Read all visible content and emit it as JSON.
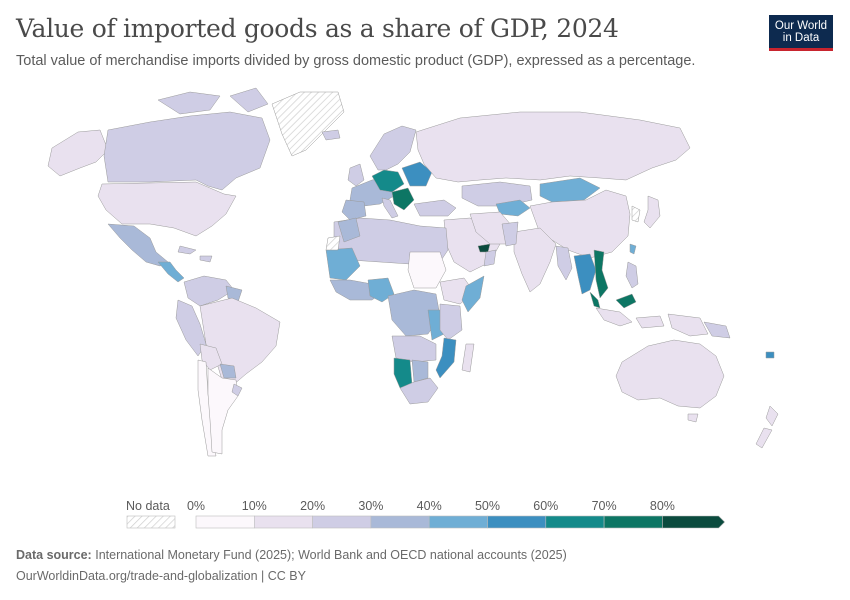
{
  "title": "Value of imported goods as a share of GDP, 2024",
  "subtitle": "Total value of merchandise imports divided by gross domestic product (GDP), expressed as a percentage.",
  "logo": {
    "line1": "Our World",
    "line2": "in Data"
  },
  "legend": {
    "no_data_label": "No data",
    "ticks": [
      "0%",
      "10%",
      "20%",
      "30%",
      "40%",
      "50%",
      "60%",
      "70%",
      "80%"
    ],
    "colors": [
      "#fcf8fc",
      "#e9e1ef",
      "#cfcde5",
      "#a9b9d8",
      "#6faed5",
      "#3c8fc0",
      "#148a8a",
      "#0d7664",
      "#0b4b3e"
    ]
  },
  "footer": {
    "source_label": "Data source:",
    "source_text": "International Monetary Fund (2025); World Bank and OECD national accounts (2025)",
    "link_text": "OurWorldinData.org/trade-and-globalization | CC BY"
  }
}
